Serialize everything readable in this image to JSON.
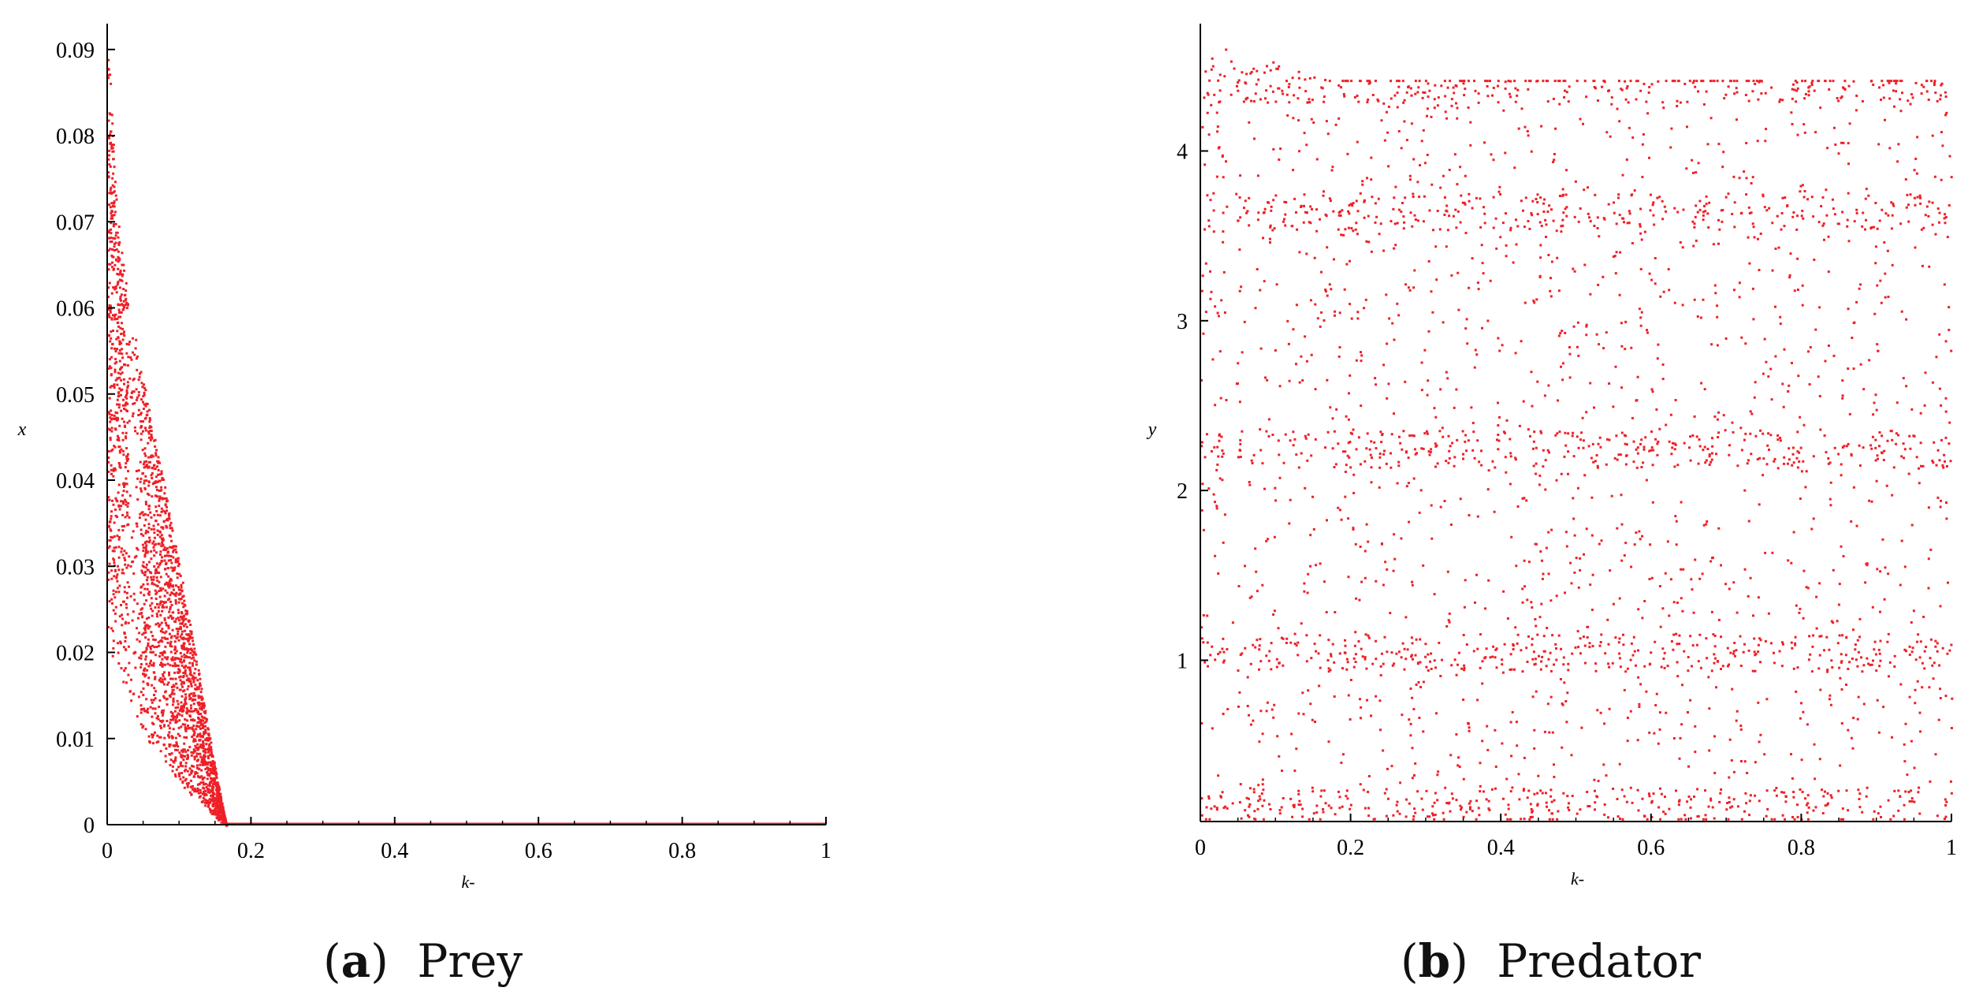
{
  "figure": {
    "caption_a": {
      "open": "(",
      "letter": "a",
      "close": ")",
      "text": "Prey"
    },
    "caption_b": {
      "open": "(",
      "letter": "b",
      "close": ")",
      "text": "Predator"
    }
  },
  "chart_data": [
    {
      "type": "scatter",
      "panel": "a",
      "title": "",
      "xlabel": "k-",
      "ylabel": "x",
      "xlim": [
        0,
        1
      ],
      "ylim": [
        0,
        0.093
      ],
      "xticks": [
        0,
        0.2,
        0.4,
        0.6,
        0.8,
        1
      ],
      "xtick_labels": [
        "0",
        "0.2",
        "0.4",
        "0.6",
        "0.8",
        "1"
      ],
      "yticks": [
        0,
        0.01,
        0.02,
        0.03,
        0.04,
        0.05,
        0.06,
        0.07,
        0.08,
        0.09
      ],
      "ytick_labels": [
        "0",
        "0.01",
        "0.02",
        "0.03",
        "0.04",
        "0.05",
        "0.06",
        "0.07",
        "0.08",
        "0.09"
      ],
      "grid": false,
      "color": "#ee2027",
      "bifurcation_envelope": [
        {
          "k": 0.0,
          "x_min": 0.021,
          "x_max": 0.092
        },
        {
          "k": 0.01,
          "x_min": 0.018,
          "x_max": 0.075
        },
        {
          "k": 0.02,
          "x_min": 0.016,
          "x_max": 0.066
        },
        {
          "k": 0.03,
          "x_min": 0.014,
          "x_max": 0.06
        },
        {
          "k": 0.04,
          "x_min": 0.012,
          "x_max": 0.056
        },
        {
          "k": 0.06,
          "x_min": 0.009,
          "x_max": 0.047
        },
        {
          "k": 0.08,
          "x_min": 0.007,
          "x_max": 0.039
        },
        {
          "k": 0.1,
          "x_min": 0.005,
          "x_max": 0.03
        },
        {
          "k": 0.12,
          "x_min": 0.003,
          "x_max": 0.021
        },
        {
          "k": 0.14,
          "x_min": 0.0015,
          "x_max": 0.011
        },
        {
          "k": 0.16,
          "x_min": 0.0002,
          "x_max": 0.002
        },
        {
          "k": 0.165,
          "x_min": 0.0,
          "x_max": 0.0
        },
        {
          "k": 1.0,
          "x_min": 0.0,
          "x_max": 0.0
        }
      ]
    },
    {
      "type": "scatter",
      "panel": "b",
      "title": "",
      "xlabel": "k-",
      "ylabel": "y",
      "xlim": [
        0,
        1
      ],
      "ylim": [
        0.05,
        4.75
      ],
      "xticks": [
        0,
        0.2,
        0.4,
        0.6,
        0.8,
        1
      ],
      "xtick_labels": [
        "0",
        "0.2",
        "0.4",
        "0.6",
        "0.8",
        "1"
      ],
      "yticks": [
        1,
        2,
        3,
        4
      ],
      "ytick_labels": [
        "1",
        "2",
        "3",
        "4"
      ],
      "grid": false,
      "color": "#ee2027",
      "bifurcation_envelope": [
        {
          "k": 0.0,
          "y_min": 0.07,
          "y_max": 4.75
        },
        {
          "k": 0.05,
          "y_min": 0.07,
          "y_max": 4.65
        },
        {
          "k": 0.1,
          "y_min": 0.07,
          "y_max": 4.52
        },
        {
          "k": 0.15,
          "y_min": 0.07,
          "y_max": 4.44
        },
        {
          "k": 0.17,
          "y_min": 0.07,
          "y_max": 4.42
        },
        {
          "k": 1.0,
          "y_min": 0.07,
          "y_max": 4.42
        }
      ],
      "dense_bands_y": [
        0.15,
        1.05,
        2.25,
        3.65,
        4.4
      ]
    }
  ]
}
